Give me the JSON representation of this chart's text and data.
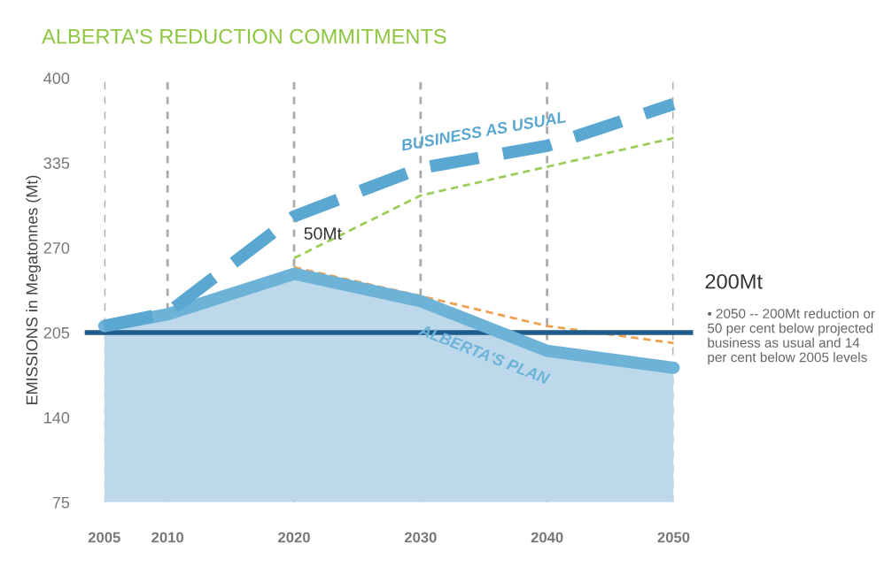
{
  "chart_data": {
    "type": "line",
    "title": "ALBERTA'S REDUCTION COMMITMENTS",
    "ylabel": "EMISSIONS in Megatonnes (Mt)",
    "x": [
      2005,
      2010,
      2020,
      2030,
      2040,
      2050
    ],
    "xlim": [
      2005,
      2050
    ],
    "xticks": [
      2005,
      2010,
      2020,
      2030,
      2040,
      2050
    ],
    "ylim": [
      75,
      400
    ],
    "yticks": [
      75,
      140,
      205,
      270,
      335,
      400
    ],
    "grid": "x",
    "series": [
      {
        "name": "ALBERTA'S PLAN",
        "type": "area",
        "color": "#6db3d8",
        "values": [
          210,
          219,
          250,
          229,
          191,
          178
        ]
      },
      {
        "x": [
          2020,
          2030,
          2040,
          2050
        ],
        "line_style": "dashed",
        "color": "#f0a050",
        "values": [
          255,
          233,
          210,
          197
        ]
      },
      {
        "x": [
          2020,
          2030,
          2040,
          2050
        ],
        "line_style": "dashed",
        "color": "#9ccc5a",
        "values": [
          262,
          310,
          332,
          354
        ]
      },
      {
        "name": "BUSINESS AS USUAL",
        "line_style": "dashed",
        "color": "#5aa7d1",
        "values": [
          210,
          220,
          294,
          331,
          348,
          380
        ]
      }
    ],
    "ref_lines": [
      {
        "axis": "y",
        "value": 205,
        "color": "#1f5c8a"
      }
    ],
    "annotations": [
      "50Mt",
      "200Mt",
      "• 2050 -- 200Mt reduction or 50 per cent below projected business as usual and 14 per cent below 2005 levels"
    ]
  }
}
